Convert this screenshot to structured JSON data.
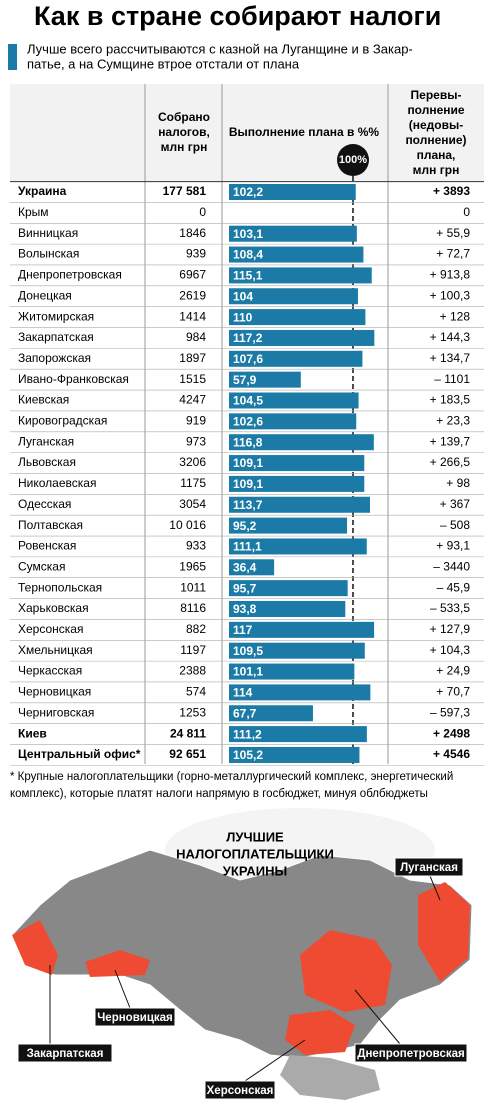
{
  "title": "Как в стране собирают налоги",
  "subtitle": [
    "Лучше всего рассчитываются с казной на Луганщине и в Закар-",
    "патье, а на Сумщине втрое отстали от плана"
  ],
  "table": {
    "headers": {
      "collected": [
        "Собрано",
        "налогов,",
        "млн грн"
      ],
      "percent": "Выполнение плана в %%",
      "plan_mark": "100%",
      "over": [
        "Перевы-",
        "полнение",
        "(недовы-",
        "полнение)",
        "плана,",
        "млн грн"
      ]
    },
    "rows": [
      {
        "region": "Украина",
        "collected": "177 581",
        "percent": {
          "value": 102.2,
          "label": "102,2"
        },
        "over": "+ 3893"
      },
      {
        "region": "Крым",
        "collected": "0",
        "percent": null,
        "over": "0"
      },
      {
        "region": "Винницкая",
        "collected": "1846",
        "percent": {
          "value": 103.1,
          "label": "103,1"
        },
        "over": "+ 55,9"
      },
      {
        "region": "Волынская",
        "collected": "939",
        "percent": {
          "value": 108.4,
          "label": "108,4"
        },
        "over": "+ 72,7"
      },
      {
        "region": "Днепропетровская",
        "collected": "6967",
        "percent": {
          "value": 115.1,
          "label": "115,1"
        },
        "over": "+ 913,8"
      },
      {
        "region": "Донецкая",
        "collected": "2619",
        "percent": 104,
        "over": "+ 100,3"
      },
      {
        "region": "Житомирская",
        "collected": "1414",
        "percent": 110,
        "over": "+ 128"
      },
      {
        "region": "Закарпатская",
        "collected": "984",
        "percent": {
          "value": 117.2,
          "label": "117,2"
        },
        "over": "+ 144,3"
      },
      {
        "region": "Запорожская",
        "collected": "1897",
        "percent": {
          "value": 107.6,
          "label": "107,6"
        },
        "over": "+ 134,7"
      },
      {
        "region": "Ивано-Франковская",
        "collected": "1515",
        "percent": {
          "value": 57.9,
          "label": "57,9"
        },
        "over": "– 1101"
      },
      {
        "region": "Киевская",
        "collected": "4247",
        "percent": {
          "value": 104.5,
          "label": "104,5"
        },
        "over": "+ 183,5"
      },
      {
        "region": "Кировоградская",
        "collected": "919",
        "percent": {
          "value": 102.6,
          "label": "102,6"
        },
        "over": "+ 23,3"
      },
      {
        "region": "Луганская",
        "collected": "973",
        "percent": {
          "value": 116.8,
          "label": "116,8"
        },
        "over": "+ 139,7"
      },
      {
        "region": "Львовская",
        "collected": "3206",
        "percent": {
          "value": 109.1,
          "label": "109,1"
        },
        "over": "+ 266,5"
      },
      {
        "region": "Николаевская",
        "collected": "1175",
        "percent": {
          "value": 109.1,
          "label": "109,1"
        },
        "over": "+ 98"
      },
      {
        "region": "Одесская",
        "collected": "3054",
        "percent": {
          "value": 113.7,
          "label": "113,7"
        },
        "over": "+ 367"
      },
      {
        "region": "Полтавская",
        "collected": "10 016",
        "percent": {
          "value": 95.2,
          "label": "95,2"
        },
        "over": "– 508"
      },
      {
        "region": "Ровенская",
        "collected": "933",
        "percent": {
          "value": 111.1,
          "label": "111,1"
        },
        "over": "+ 93,1"
      },
      {
        "region": "Сумская",
        "collected": "1965",
        "percent": {
          "value": 36.4,
          "label": "36,4"
        },
        "over": "– 3440"
      },
      {
        "region": "Тернопольская",
        "collected": "1011",
        "percent": {
          "value": 95.7,
          "label": "95,7"
        },
        "over": "– 45,9"
      },
      {
        "region": "Харьковская",
        "collected": "8116",
        "percent": {
          "value": 93.8,
          "label": "93,8"
        },
        "over": "– 533,5"
      },
      {
        "region": "Херсонская",
        "collected": "882",
        "percent": 117,
        "over": "+ 127,9"
      },
      {
        "region": "Хмельницкая",
        "collected": "1197",
        "percent": {
          "value": 109.5,
          "label": "109,5"
        },
        "over": "+ 104,3"
      },
      {
        "region": "Черкасская",
        "collected": "2388",
        "percent": {
          "value": 101.1,
          "label": "101,1"
        },
        "over": "+ 24,9"
      },
      {
        "region": "Черновицкая",
        "collected": "574",
        "percent": 114,
        "over": "+ 70,7"
      },
      {
        "region": "Черниговская",
        "collected": "1253",
        "percent": {
          "value": 67.7,
          "label": "67,7"
        },
        "over": "– 597,3"
      },
      {
        "region": "Киев",
        "collected": "24 811",
        "percent": {
          "value": 111.2,
          "label": "111,2"
        },
        "over": "+ 2498"
      },
      {
        "region": "Центральный офис*",
        "collected": "92 651",
        "percent": {
          "value": 105.2,
          "label": "105,2"
        },
        "over": "+ 4546"
      }
    ]
  },
  "footnote": [
    "* Крупные налогоплательщики (горно-металлургический комплекс, энергетический",
    "комплекс), которые платят налоги напрямую в госбюджет, минуя облбюджеты"
  ],
  "map": {
    "title": [
      "ЛУЧШИЕ",
      "НАЛОГОПЛАТЕЛЬЩИКИ",
      "УКРАИНЫ"
    ],
    "labels": [
      "Луганская",
      "Черновицкая",
      "Закарпатская",
      "Херсонская",
      "Днепропетровская"
    ]
  }
}
